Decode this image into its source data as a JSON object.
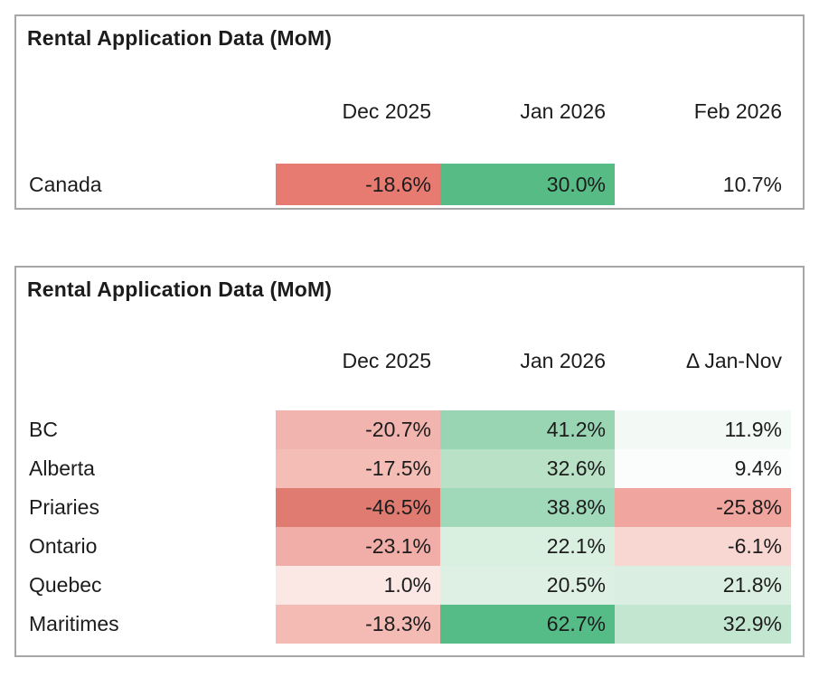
{
  "page": {
    "background": "#ffffff",
    "border_color": "#a6a6a6"
  },
  "table1": {
    "title": "Rental Application Data (MoM)",
    "columns": [
      "Dec 2025",
      "Jan 2026",
      "Feb 2026"
    ],
    "rows": [
      {
        "label": "Canada",
        "cells": [
          {
            "value": "-18.6%",
            "bg": "#e87b71"
          },
          {
            "value": "30.0%",
            "bg": "#57bb85"
          },
          {
            "value": "10.7%",
            "bg": "#ffffff"
          }
        ]
      }
    ]
  },
  "table2": {
    "title": "Rental Application Data (MoM)",
    "columns": [
      "Dec 2025",
      "Jan 2026",
      "Δ Jan-Nov"
    ],
    "rows": [
      {
        "label": "BC",
        "cells": [
          {
            "value": "-20.7%",
            "bg": "#f2b4ae"
          },
          {
            "value": "41.2%",
            "bg": "#9ad5b3"
          },
          {
            "value": "11.9%",
            "bg": "#f3faf6"
          }
        ]
      },
      {
        "label": "Alberta",
        "cells": [
          {
            "value": "-17.5%",
            "bg": "#f4bdb6"
          },
          {
            "value": "32.6%",
            "bg": "#b8e1c6"
          },
          {
            "value": "9.4%",
            "bg": "#fbfdfc"
          }
        ]
      },
      {
        "label": "Priaries",
        "cells": [
          {
            "value": "-46.5%",
            "bg": "#e07b72"
          },
          {
            "value": "38.8%",
            "bg": "#a0d8ba"
          },
          {
            "value": "-25.8%",
            "bg": "#f0a59e"
          }
        ]
      },
      {
        "label": "Ontario",
        "cells": [
          {
            "value": "-23.1%",
            "bg": "#f1aea8"
          },
          {
            "value": "22.1%",
            "bg": "#d9efe0"
          },
          {
            "value": "-6.1%",
            "bg": "#f8d7d3"
          }
        ]
      },
      {
        "label": "Quebec",
        "cells": [
          {
            "value": "1.0%",
            "bg": "#fbe8e5"
          },
          {
            "value": "20.5%",
            "bg": "#ddf0e3"
          },
          {
            "value": "21.8%",
            "bg": "#daefe1"
          }
        ]
      },
      {
        "label": "Maritimes",
        "cells": [
          {
            "value": "-18.3%",
            "bg": "#f3bbb4"
          },
          {
            "value": "62.7%",
            "bg": "#55bb87"
          },
          {
            "value": "32.9%",
            "bg": "#c3e6d0"
          }
        ]
      }
    ]
  },
  "chart_data": [
    {
      "type": "table",
      "title": "Rental Application Data (MoM)",
      "categories": [
        "Canada"
      ],
      "columns": [
        "Dec 2025",
        "Jan 2026",
        "Feb 2026"
      ],
      "series": [
        {
          "name": "Dec 2025",
          "values": [
            -18.6
          ]
        },
        {
          "name": "Jan 2026",
          "values": [
            30.0
          ]
        },
        {
          "name": "Feb 2026",
          "values": [
            10.7
          ]
        }
      ],
      "unit": "%",
      "conditional_formatting": "red-white-green heatmap",
      "negative_color": "#e07b72",
      "positive_color": "#55bb87"
    },
    {
      "type": "table",
      "title": "Rental Application Data (MoM)",
      "categories": [
        "BC",
        "Alberta",
        "Priaries",
        "Ontario",
        "Quebec",
        "Maritimes"
      ],
      "columns": [
        "Dec 2025",
        "Jan 2026",
        "Δ Jan-Nov"
      ],
      "series": [
        {
          "name": "Dec 2025",
          "values": [
            -20.7,
            -17.5,
            -46.5,
            -23.1,
            1.0,
            -18.3
          ]
        },
        {
          "name": "Jan 2026",
          "values": [
            41.2,
            32.6,
            38.8,
            22.1,
            20.5,
            62.7
          ]
        },
        {
          "name": "Δ Jan-Nov",
          "values": [
            11.9,
            9.4,
            -25.8,
            -6.1,
            21.8,
            32.9
          ]
        }
      ],
      "unit": "%",
      "conditional_formatting": "red-white-green heatmap",
      "negative_color": "#e07b72",
      "positive_color": "#55bb87"
    }
  ]
}
